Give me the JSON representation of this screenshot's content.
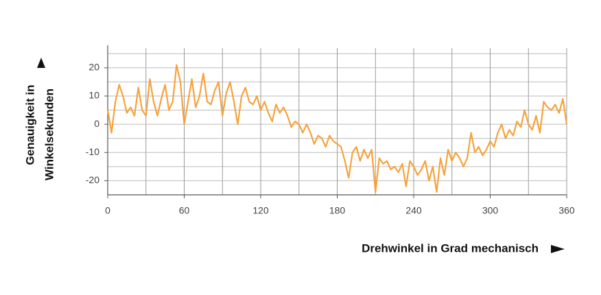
{
  "chart_data": {
    "type": "line",
    "x_label": "Drehwinkel in Grad mechanisch",
    "y_label": [
      "Genauigkeit in",
      "Winkelsekunden"
    ],
    "xlim": [
      0,
      360
    ],
    "xticks": [
      0,
      60,
      120,
      180,
      240,
      300,
      360
    ],
    "ylim": [
      -25,
      27
    ],
    "yticks": [
      -20,
      -10,
      0,
      10,
      20
    ],
    "grid": true,
    "series": [
      {
        "color": "#f7a23b",
        "x": [
          0,
          3,
          6,
          9,
          12,
          15,
          18,
          21,
          24,
          27,
          30,
          33,
          36,
          39,
          42,
          45,
          48,
          51,
          54,
          57,
          60,
          63,
          66,
          69,
          72,
          75,
          78,
          81,
          84,
          87,
          90,
          93,
          96,
          99,
          102,
          105,
          108,
          111,
          114,
          117,
          120,
          123,
          126,
          129,
          132,
          135,
          138,
          141,
          144,
          147,
          150,
          153,
          156,
          159,
          162,
          165,
          168,
          171,
          174,
          177,
          180,
          183,
          186,
          189,
          192,
          195,
          198,
          201,
          204,
          207,
          210,
          213,
          216,
          219,
          222,
          225,
          228,
          231,
          234,
          237,
          240,
          243,
          246,
          249,
          252,
          255,
          258,
          261,
          264,
          267,
          270,
          273,
          276,
          279,
          282,
          285,
          288,
          291,
          294,
          297,
          300,
          303,
          306,
          309,
          312,
          315,
          318,
          321,
          324,
          327,
          330,
          333,
          336,
          339,
          342,
          345,
          348,
          351,
          354,
          357,
          360
        ],
        "values": [
          5,
          -3,
          8,
          14,
          10,
          4,
          6,
          3,
          13,
          5,
          3,
          16,
          8,
          3,
          9,
          14,
          5,
          8,
          21,
          15,
          0,
          8,
          16,
          6,
          10,
          18,
          8,
          7,
          12,
          15,
          3,
          11,
          15,
          8,
          0,
          10,
          13,
          8,
          7,
          10,
          5,
          8,
          4,
          1,
          7,
          4,
          6,
          3,
          -1,
          1,
          0,
          -3,
          0,
          -3,
          -7,
          -4,
          -5,
          -8,
          -4,
          -6,
          -7,
          -8,
          -13,
          -19,
          -10,
          -8,
          -13,
          -9,
          -12,
          -9,
          -24,
          -12,
          -14,
          -13,
          -16,
          -15,
          -17,
          -14,
          -22,
          -13,
          -15,
          -18,
          -16,
          -13,
          -20,
          -15,
          -24,
          -12,
          -18,
          -9,
          -13,
          -10,
          -12,
          -15,
          -12,
          -3,
          -10,
          -8,
          -11,
          -9,
          -6,
          -8,
          -3,
          0,
          -5,
          -2,
          -4,
          1,
          -1,
          5,
          0,
          -2,
          3,
          -3,
          8,
          6,
          5,
          7,
          4,
          9,
          0
        ]
      }
    ]
  }
}
